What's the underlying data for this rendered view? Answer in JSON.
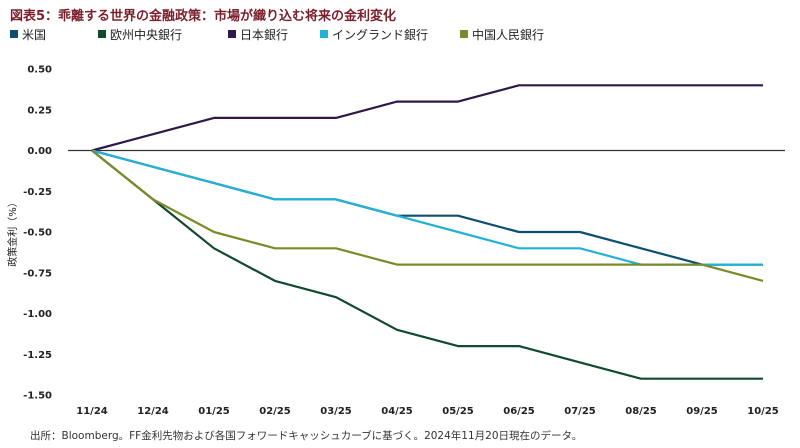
{
  "title": "図表5：乖離する世界の金融政策：市場が織り込む将来の金利変化",
  "source": "出所：Bloomberg。FF金利先物および各国フォワードキャッシュカーブに基づく。2024年11月20日現在のデータ。",
  "chart_data": {
    "type": "line",
    "title": "図表5：乖離する世界の金融政策：市場が織り込む将来の金利変化",
    "ylabel": "政策金利（%）",
    "xlabel": "",
    "categories": [
      "11/24",
      "12/24",
      "01/25",
      "02/25",
      "03/25",
      "04/25",
      "05/25",
      "06/25",
      "07/25",
      "08/25",
      "09/25",
      "10/25"
    ],
    "yticks": [
      "0.50",
      "0.25",
      "0.00",
      "-0.25",
      "-0.50",
      "-0.75",
      "-1.00",
      "-1.25",
      "-1.50"
    ],
    "ylim": [
      -1.5,
      0.5
    ],
    "grid": false,
    "legend_position": "top-left",
    "series": [
      {
        "name": "米国",
        "color": "#0d4f6e",
        "values": [
          0,
          -0.1,
          -0.2,
          -0.3,
          -0.3,
          -0.4,
          -0.4,
          -0.5,
          -0.5,
          -0.6,
          -0.7,
          -0.7
        ]
      },
      {
        "name": "欧州中央銀行",
        "color": "#114a2d",
        "values": [
          0,
          -0.3,
          -0.6,
          -0.8,
          -0.9,
          -1.1,
          -1.2,
          -1.2,
          -1.3,
          -1.4,
          -1.4,
          -1.4
        ]
      },
      {
        "name": "日本銀行",
        "color": "#2d1848",
        "values": [
          0,
          0.1,
          0.2,
          0.2,
          0.2,
          0.3,
          0.3,
          0.4,
          0.4,
          0.4,
          0.4,
          0.4
        ]
      },
      {
        "name": "イングランド銀行",
        "color": "#23b2d6",
        "values": [
          0,
          -0.1,
          -0.2,
          -0.3,
          -0.3,
          -0.4,
          -0.5,
          -0.6,
          -0.6,
          -0.7,
          -0.7,
          -0.7
        ]
      },
      {
        "name": "中国人民銀行",
        "color": "#7c8a2a",
        "values": [
          0,
          -0.3,
          -0.5,
          -0.6,
          -0.6,
          -0.7,
          -0.7,
          -0.7,
          -0.7,
          -0.7,
          -0.7,
          -0.8
        ]
      }
    ]
  }
}
